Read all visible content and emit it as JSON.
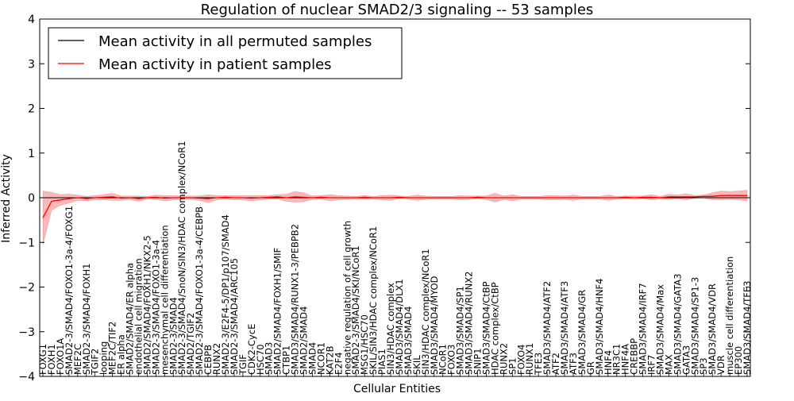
{
  "chart_data": {
    "type": "line",
    "title": "Regulation of nuclear SMAD2/3 signaling -- 53 samples",
    "xlabel": "Cellular Entities",
    "ylabel": "Inferred Activity",
    "ylim": [
      -4,
      4
    ],
    "yticks": [
      "4",
      "3",
      "2",
      "1",
      "0",
      "−1",
      "−2",
      "−3",
      "−4"
    ],
    "ytick_values": [
      4,
      3,
      2,
      1,
      0,
      -1,
      -2,
      -3,
      -4
    ],
    "legend": {
      "placement": "top-left",
      "entries": [
        {
          "label": "Mean activity in all permuted samples",
          "color": "#000000"
        },
        {
          "label": "Mean activity in patient samples",
          "color": "#ff0000"
        }
      ]
    },
    "categories": [
      "FOXG1",
      "FOXH1",
      "FOXO1A",
      "SMAD2-3/SMAD4/FOXO1-3a-4/FOXG1",
      "MEF2C",
      "SMAD2-3/SMAD4/FOXH1",
      "TGIF2",
      "looping",
      "MEF2C/TIF2",
      "ER alpha",
      "SMAD2/SMAD4/ER alpha",
      "endothelial cell migration",
      "SMAD2/SMAD4/FOXH1/NKX2-5",
      "SMAD2-3/SMAD4/FOXO1-3a-4",
      "mesenchymal cell differentiation",
      "SMAD2-3/SMAD4",
      "SMAD2-3/SMAD4/SnoN/SIN3/HDAC complex/NCoR1",
      "SMAD2/TGIF2",
      "SMAD2-3/SMAD4/FOXO1-3a-4/CEBPB",
      "CEBPB",
      "RUNX2",
      "SMAD2-3/E2F4-5/DP1/p107/SMAD4",
      "SMAD2-3/SMAD4/ARC105",
      "TGIF",
      "CDK2-CycE",
      "HSC70",
      "SMAD3",
      "SMAD2/SMAD4/FOXH1/SMIF",
      "CTBP1",
      "SMAD3/SMAD4/RUNX1-3/PEBPB2",
      "SMAD2/SMAD4",
      "SMAD4",
      "NCOR1",
      "KAT2B",
      "E2F4",
      "negative regulation of cell growth",
      "SMAD2-3/SMAD4/SKI/NCoR1",
      "MSG1/HSC70",
      "SKIL/SIN3/HDAC complex/NCoR1",
      "PIAS1",
      "SIN3/HDAC complex",
      "SMAD3/SMAD4/DLX1",
      "SMAD3/SMAD4",
      "SKIL",
      "SIN3/HDAC complex/NCoR1",
      "SMAD3/SMAD4/MYOD",
      "NCoR1",
      "FOXO3",
      "SMAD3/SMAD4/SP1",
      "SMAD3/SMAD4/RUNX2",
      "SNIP1",
      "SMAD3/SMAD4/CtBP",
      "HDAC complex/CtBP",
      "RUNX2",
      "SP1",
      "FOXO4",
      "RUNX1",
      "TFE3",
      "SMAD3/SMAD4/ATF2",
      "ATF2",
      "SMAD3/SMAD4/ATF3",
      "ATF3",
      "SMAD3/SMAD4/GR",
      "GR",
      "SMAD3/SMAD4/HNF4",
      "HNF4",
      "NR3C1",
      "HNF4A",
      "CREBBP",
      "SMAD3/SMAD4/IRF7",
      "IRF7",
      "SMAD3/SMAD4/Max",
      "MAX",
      "SMAD3/SMAD4/GATA3",
      "GATA3",
      "SMAD3/SMAD4/SP1-3",
      "SP3",
      "SMAD3/SMAD4/VDR",
      "VDR",
      "muscle cell differentiation",
      "EP300",
      "SMAD3/SMAD4/TFE3"
    ],
    "x_axis_labels": [
      "FOXG1",
      "FOXH1",
      "FOXO1A",
      "SMAD2-3/SMAD4/FOXO1-3a-4/FOXG1",
      "MEF2C",
      "SMAD2-3/SMAD4/FOXH1",
      "TGIF2",
      "looping",
      "MEF2C/TIF2",
      "ER alpha",
      "SMAD2/SMAD4/ER alpha",
      "endothelial cell migration",
      "SMAD2/SMAD4/FOXH1/NKX2-5",
      "SMAD2-3/SMAD4/FOXO1-3a-4",
      "mesenchymal cell differentiation",
      "SMAD2-3/SMAD4",
      "SMAD2-3/SMAD4/SnoN/SIN3/HDAC complex/NCoR1",
      "SMAD2/TGIF2",
      "SMAD2-3/SMAD4/FOXO1-3a-4/CEBPB",
      "CEBPB",
      "RUNX2",
      "SMAD2-3/E2F4-5/DP1/p107/SMAD4",
      "SMAD2-3/SMAD4/ARC105",
      "TGIF",
      "CDK2-CycE",
      "HSC70",
      "SMAD3",
      "SMAD2/SMAD4/FOXH1/SMIF",
      "CTBP1",
      "SMAD3/SMAD4/RUNX1-3/PEBPB2",
      "SMAD2/SMAD4",
      "SMAD4",
      "NCOR1",
      "KAT2B",
      "E2F4",
      "negative regulation of cell growth",
      "SMAD2-3/SMAD4/SKI/NCoR1",
      "MSG1/HSC70",
      "SKIL/SIN3/HDAC complex/NCoR1",
      "PIAS1",
      "SIN3/HDAC complex",
      "SMAD3/SMAD4/DLX1",
      "SMAD3/SMAD4",
      "SKIL",
      "SIN3/HDAC complex/NCoR1",
      "SMAD3/SMAD4/MYOD",
      "NCoR1",
      "FOXO3",
      "SMAD3/SMAD4/SP1",
      "SMAD3/SMAD4/RUNX2",
      "SNIP1",
      "SMAD3/SMAD4/CtBP",
      "HDAC complex/CtBP",
      "RUNX2",
      "SP1",
      "FOXO4",
      "RUNX1",
      "TFE3",
      "SMAD3/SMAD4/ATF2",
      "ATF2",
      "SMAD3/SMAD4/ATF3",
      "ATF3",
      "SMAD3/SMAD4/GR",
      "GR",
      "SMAD3/SMAD4/HNF4",
      "HNF4",
      "NR3C1",
      "HNF4A",
      "CREBBP",
      "SMAD3/SMAD4/IRF7",
      "IRF7",
      "SMAD3/SMAD4/Max",
      "MAX",
      "SMAD3/SMAD4/GATA3",
      "GATA3",
      "SMAD3/SMAD4/SP1-3",
      "SP3",
      "SMAD3/SMAD4/VDR",
      "VDR",
      "muscle cell differentiation",
      "EP300",
      "SMAD3/SMAD4/TFE3"
    ],
    "series": [
      {
        "name": "Mean activity in all permuted samples",
        "color": "#000000",
        "values": [
          0,
          0,
          0,
          0,
          0,
          0,
          0,
          0,
          0,
          0,
          0,
          0,
          0,
          0,
          0,
          0,
          0,
          0,
          0,
          0,
          0,
          0,
          0,
          0,
          0,
          0,
          0,
          0,
          0,
          0,
          0,
          0,
          0,
          0,
          0,
          0,
          0,
          0,
          0,
          0,
          0,
          0,
          0,
          0,
          0,
          0,
          0,
          0,
          0,
          0,
          0,
          0,
          0,
          0,
          0,
          0,
          0,
          0,
          0,
          0,
          0,
          0,
          0,
          0,
          0,
          0,
          0,
          0,
          0,
          0,
          0,
          0,
          0,
          0,
          0,
          0,
          0,
          0,
          0,
          0,
          0,
          0
        ]
      },
      {
        "name": "Mean activity in patient samples",
        "color": "#ff0000",
        "band_color": "#f08080",
        "values": [
          -0.45,
          -0.08,
          -0.05,
          -0.02,
          0,
          -0.02,
          0,
          0.01,
          0.02,
          -0.01,
          0,
          -0.02,
          0,
          0.01,
          -0.01,
          0,
          0,
          0,
          -0.01,
          -0.02,
          0,
          0.01,
          0,
          0,
          -0.01,
          0,
          0.01,
          0.02,
          0,
          0.02,
          0.01,
          0,
          0.01,
          0,
          0,
          0,
          0,
          0.01,
          0,
          0,
          0,
          0.01,
          0,
          0,
          0,
          0,
          0,
          0,
          0,
          0,
          0.01,
          0,
          0,
          0,
          0,
          0,
          0,
          0,
          0,
          0,
          0,
          0,
          0,
          0,
          0,
          0,
          0,
          0.01,
          0,
          0.01,
          0.01,
          0,
          0.02,
          0.02,
          0.02,
          0.02,
          0.03,
          0.03,
          0.05,
          0.05,
          0.05,
          0.05
        ],
        "band_half_width": [
          0.6,
          0.2,
          0.12,
          0.1,
          0.06,
          0.05,
          0.05,
          0.06,
          0.08,
          0.05,
          0.04,
          0.06,
          0.03,
          0.05,
          0.06,
          0.05,
          0.04,
          0.04,
          0.05,
          0.09,
          0.05,
          0.04,
          0.05,
          0.05,
          0.06,
          0.05,
          0.04,
          0.05,
          0.08,
          0.12,
          0.1,
          0.04,
          0.04,
          0.07,
          0.05,
          0.04,
          0.03,
          0.04,
          0.03,
          0.05,
          0.06,
          0.03,
          0.03,
          0.06,
          0.04,
          0.03,
          0.03,
          0.03,
          0.05,
          0.04,
          0.03,
          0.04,
          0.1,
          0.04,
          0.07,
          0.03,
          0.03,
          0.03,
          0.05,
          0.05,
          0.04,
          0.06,
          0.03,
          0.03,
          0.03,
          0.06,
          0.03,
          0.03,
          0.04,
          0.03,
          0.06,
          0.03,
          0.06,
          0.04,
          0.07,
          0.03,
          0.03,
          0.08,
          0.1,
          0.09,
          0.1,
          0.12
        ]
      }
    ]
  }
}
